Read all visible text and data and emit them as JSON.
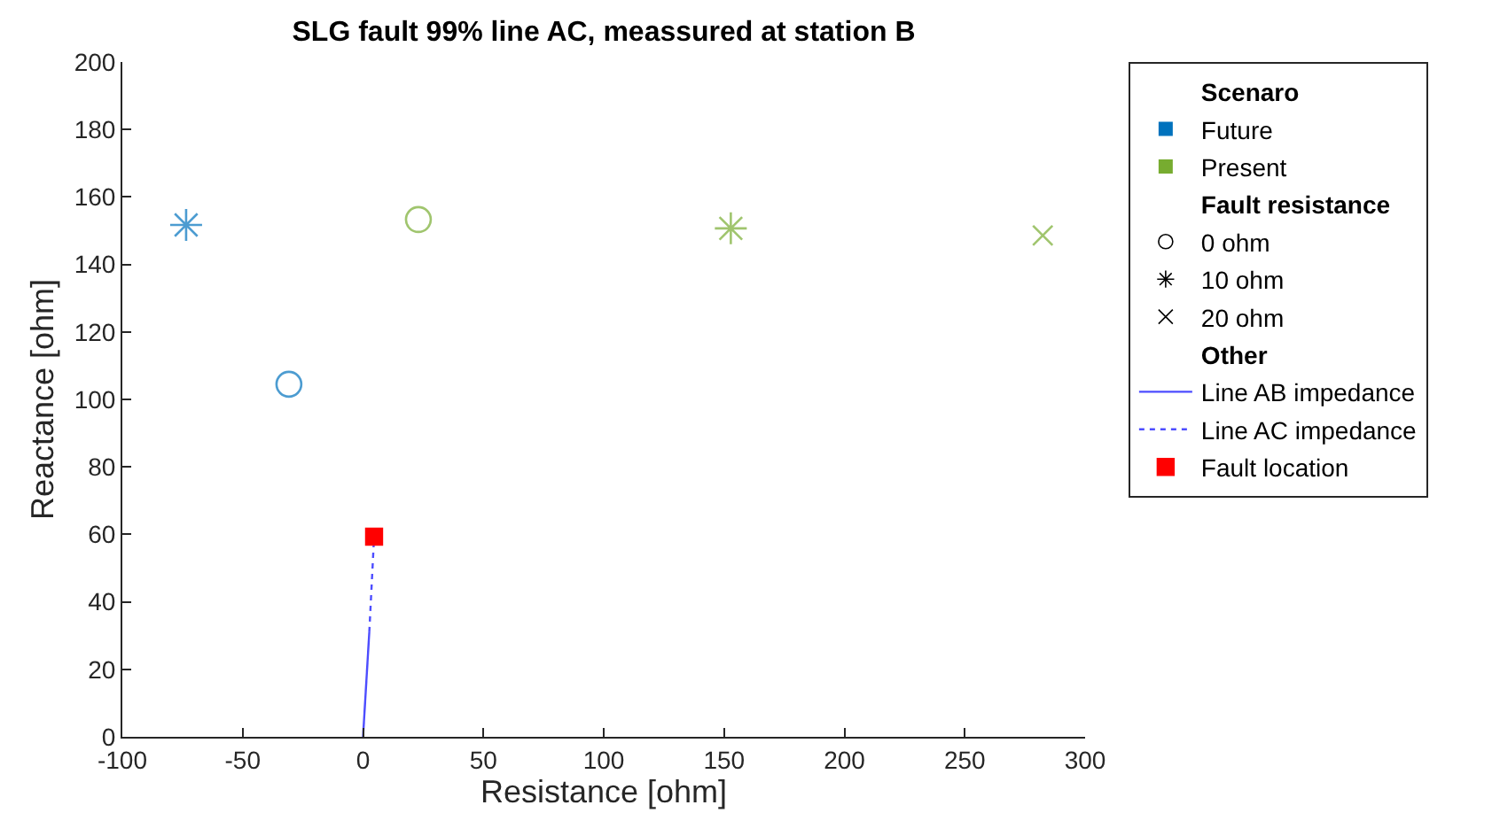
{
  "chart_data": {
    "type": "scatter",
    "title": "SLG fault 99% line AC, meassured at station B",
    "xlabel": "Resistance [ohm]",
    "ylabel": "Reactance [ohm]",
    "xlim": [
      -100,
      300
    ],
    "xticks": [
      -100,
      -50,
      0,
      50,
      100,
      150,
      200,
      250,
      300
    ],
    "ylim": [
      0,
      200
    ],
    "yticks": [
      0,
      20,
      40,
      60,
      80,
      100,
      120,
      140,
      160,
      180,
      200
    ],
    "legend": "right",
    "series": [
      {
        "name": "Scenaro",
        "marker": "none"
      },
      {
        "name": "Future",
        "color": "#0072bd",
        "x": [
          -73.5,
          -30.8
        ],
        "values": [
          151.7,
          104.5
        ],
        "marker": [
          "star",
          "circle"
        ]
      },
      {
        "name": "Present",
        "color": "#77ac30",
        "x": [
          23,
          152.8,
          282.4
        ],
        "values": [
          153.3,
          150.7,
          148.6
        ],
        "marker": [
          "circle",
          "star",
          "cross"
        ]
      },
      {
        "name": "Fault resistance",
        "marker": "none"
      },
      {
        "name": "0 ohm",
        "color": "#000000",
        "marker": "circle"
      },
      {
        "name": "10 ohm",
        "color": "#000000",
        "marker": "star"
      },
      {
        "name": "20 ohm",
        "color": "#000000",
        "marker": "cross"
      },
      {
        "name": "Other",
        "marker": "none"
      },
      {
        "name": "Line AB impedance",
        "type": "line",
        "color": "#4d4dff",
        "x": [
          0,
          2.6
        ],
        "values": [
          0,
          31
        ],
        "line_style": "solid"
      },
      {
        "name": "Line AC impedance",
        "type": "line",
        "color": "#4d4dff",
        "x": [
          2.6,
          4.6
        ],
        "values": [
          31,
          59.3
        ],
        "line_style": "dotted"
      },
      {
        "name": "Fault location",
        "type": "scatter",
        "color": "#ff0000",
        "x": [
          4.6
        ],
        "values": [
          59.3
        ],
        "marker": "square"
      }
    ]
  }
}
